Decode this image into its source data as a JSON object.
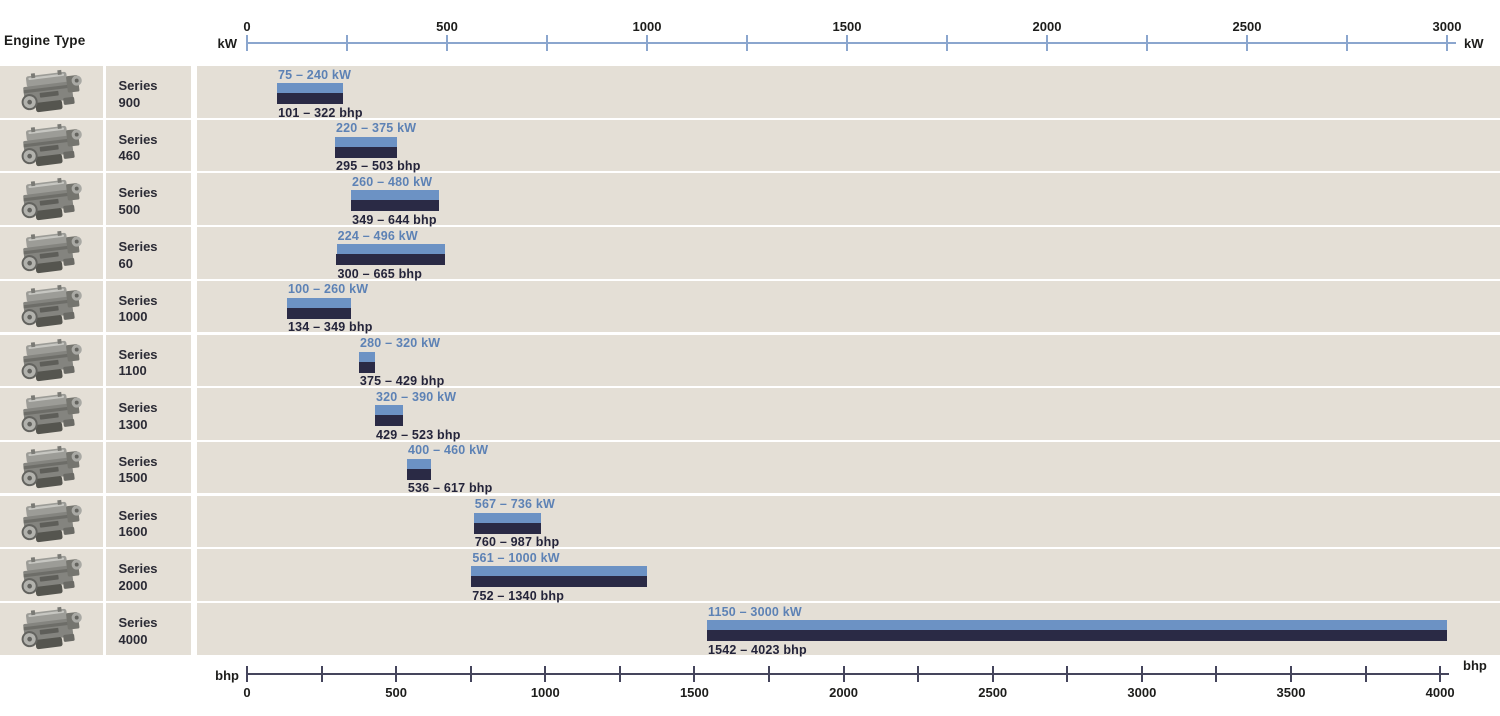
{
  "header": {
    "engine_type_label": "Engine Type"
  },
  "kw_axis": {
    "unit": "kW",
    "min": 0,
    "max": 3000,
    "minor_tick_step": 250,
    "tick_labels": [
      {
        "v": 0,
        "label": "0"
      },
      {
        "v": 500,
        "label": "500"
      },
      {
        "v": 1000,
        "label": "1000"
      },
      {
        "v": 1500,
        "label": "1500"
      },
      {
        "v": 2000,
        "label": "2000"
      },
      {
        "v": 2500,
        "label": "2500"
      },
      {
        "v": 3000,
        "label": "3000"
      }
    ]
  },
  "bhp_axis": {
    "unit": "bhp",
    "min": 0,
    "max": 4000,
    "minor_tick_step": 250,
    "tick_labels": [
      {
        "v": 0,
        "label": "0"
      },
      {
        "v": 500,
        "label": "500"
      },
      {
        "v": 1000,
        "label": "1000"
      },
      {
        "v": 1500,
        "label": "1500"
      },
      {
        "v": 2000,
        "label": "2000"
      },
      {
        "v": 2500,
        "label": "2500"
      },
      {
        "v": 3000,
        "label": "3000"
      },
      {
        "v": 3500,
        "label": "3500"
      },
      {
        "v": 4000,
        "label": "4000"
      }
    ]
  },
  "chart_data": {
    "type": "bar",
    "subtype": "horizontal-range-bars",
    "row_header": "Engine Type",
    "top_axis": {
      "unit": "kW",
      "range": [
        0,
        3000
      ],
      "tick_step": 250,
      "label_step": 500
    },
    "bottom_axis": {
      "unit": "bhp",
      "range": [
        0,
        4000
      ],
      "tick_step": 250,
      "label_step": 500
    },
    "legend": "top bar = kW range, bottom bar = bhp range, axes aligned (1 kW = 1.341 bhp)",
    "rows": [
      {
        "series": "Series",
        "model": "900",
        "kw_min": 75,
        "kw_max": 240,
        "bhp_min": 101,
        "bhp_max": 322,
        "kw_label": "75 – 240 kW",
        "bhp_label": "101 – 322 bhp",
        "icon": "engine-photo"
      },
      {
        "series": "Series",
        "model": "460",
        "kw_min": 220,
        "kw_max": 375,
        "bhp_min": 295,
        "bhp_max": 503,
        "kw_label": "220 – 375 kW",
        "bhp_label": "295 – 503 bhp",
        "icon": "engine-photo"
      },
      {
        "series": "Series",
        "model": "500",
        "kw_min": 260,
        "kw_max": 480,
        "bhp_min": 349,
        "bhp_max": 644,
        "kw_label": "260 – 480 kW",
        "bhp_label": "349 – 644 bhp",
        "icon": "engine-photo"
      },
      {
        "series": "Series",
        "model": "60",
        "kw_min": 224,
        "kw_max": 496,
        "bhp_min": 300,
        "bhp_max": 665,
        "kw_label": "224 – 496 kW",
        "bhp_label": "300 – 665 bhp",
        "icon": "engine-photo"
      },
      {
        "series": "Series",
        "model": "1000",
        "kw_min": 100,
        "kw_max": 260,
        "bhp_min": 134,
        "bhp_max": 349,
        "kw_label": "100 – 260 kW",
        "bhp_label": "134 – 349 bhp",
        "icon": "engine-photo"
      },
      {
        "series": "Series",
        "model": "1100",
        "kw_min": 280,
        "kw_max": 320,
        "bhp_min": 375,
        "bhp_max": 429,
        "kw_label": "280 – 320 kW",
        "bhp_label": "375 – 429 bhp",
        "icon": "engine-photo"
      },
      {
        "series": "Series",
        "model": "1300",
        "kw_min": 320,
        "kw_max": 390,
        "bhp_min": 429,
        "bhp_max": 523,
        "kw_label": "320 – 390 kW",
        "bhp_label": "429 – 523 bhp",
        "icon": "engine-photo"
      },
      {
        "series": "Series",
        "model": "1500",
        "kw_min": 400,
        "kw_max": 460,
        "bhp_min": 536,
        "bhp_max": 617,
        "kw_label": "400 – 460 kW",
        "bhp_label": "536 – 617 bhp",
        "icon": "engine-photo"
      },
      {
        "series": "Series",
        "model": "1600",
        "kw_min": 567,
        "kw_max": 736,
        "bhp_min": 760,
        "bhp_max": 987,
        "kw_label": "567 – 736 kW",
        "bhp_label": "760 – 987 bhp",
        "icon": "engine-photo"
      },
      {
        "series": "Series",
        "model": "2000",
        "kw_min": 561,
        "kw_max": 1000,
        "bhp_min": 752,
        "bhp_max": 1340,
        "kw_label": "561 – 1000 kW",
        "bhp_label": "752 – 1340 bhp",
        "icon": "engine-photo"
      },
      {
        "series": "Series",
        "model": "4000",
        "kw_min": 1150,
        "kw_max": 3000,
        "bhp_min": 1542,
        "bhp_max": 4023,
        "kw_label": "1150 – 3000 kW",
        "bhp_label": "1542 – 4023 bhp",
        "icon": "engine-photo"
      }
    ]
  },
  "colors": {
    "background": "#ffffff",
    "row_bg": "#e4dfd6",
    "kw_bar": "#6c92c4",
    "bhp_bar": "#2a2a45",
    "kw_text": "#5d82b5",
    "bhp_text": "#24243a",
    "kw_axis_color": "#8ba6ce",
    "bhp_axis_color": "#45455c",
    "axis_label_color": "#1d1d1b",
    "series_text_color": "#2b2b35"
  }
}
